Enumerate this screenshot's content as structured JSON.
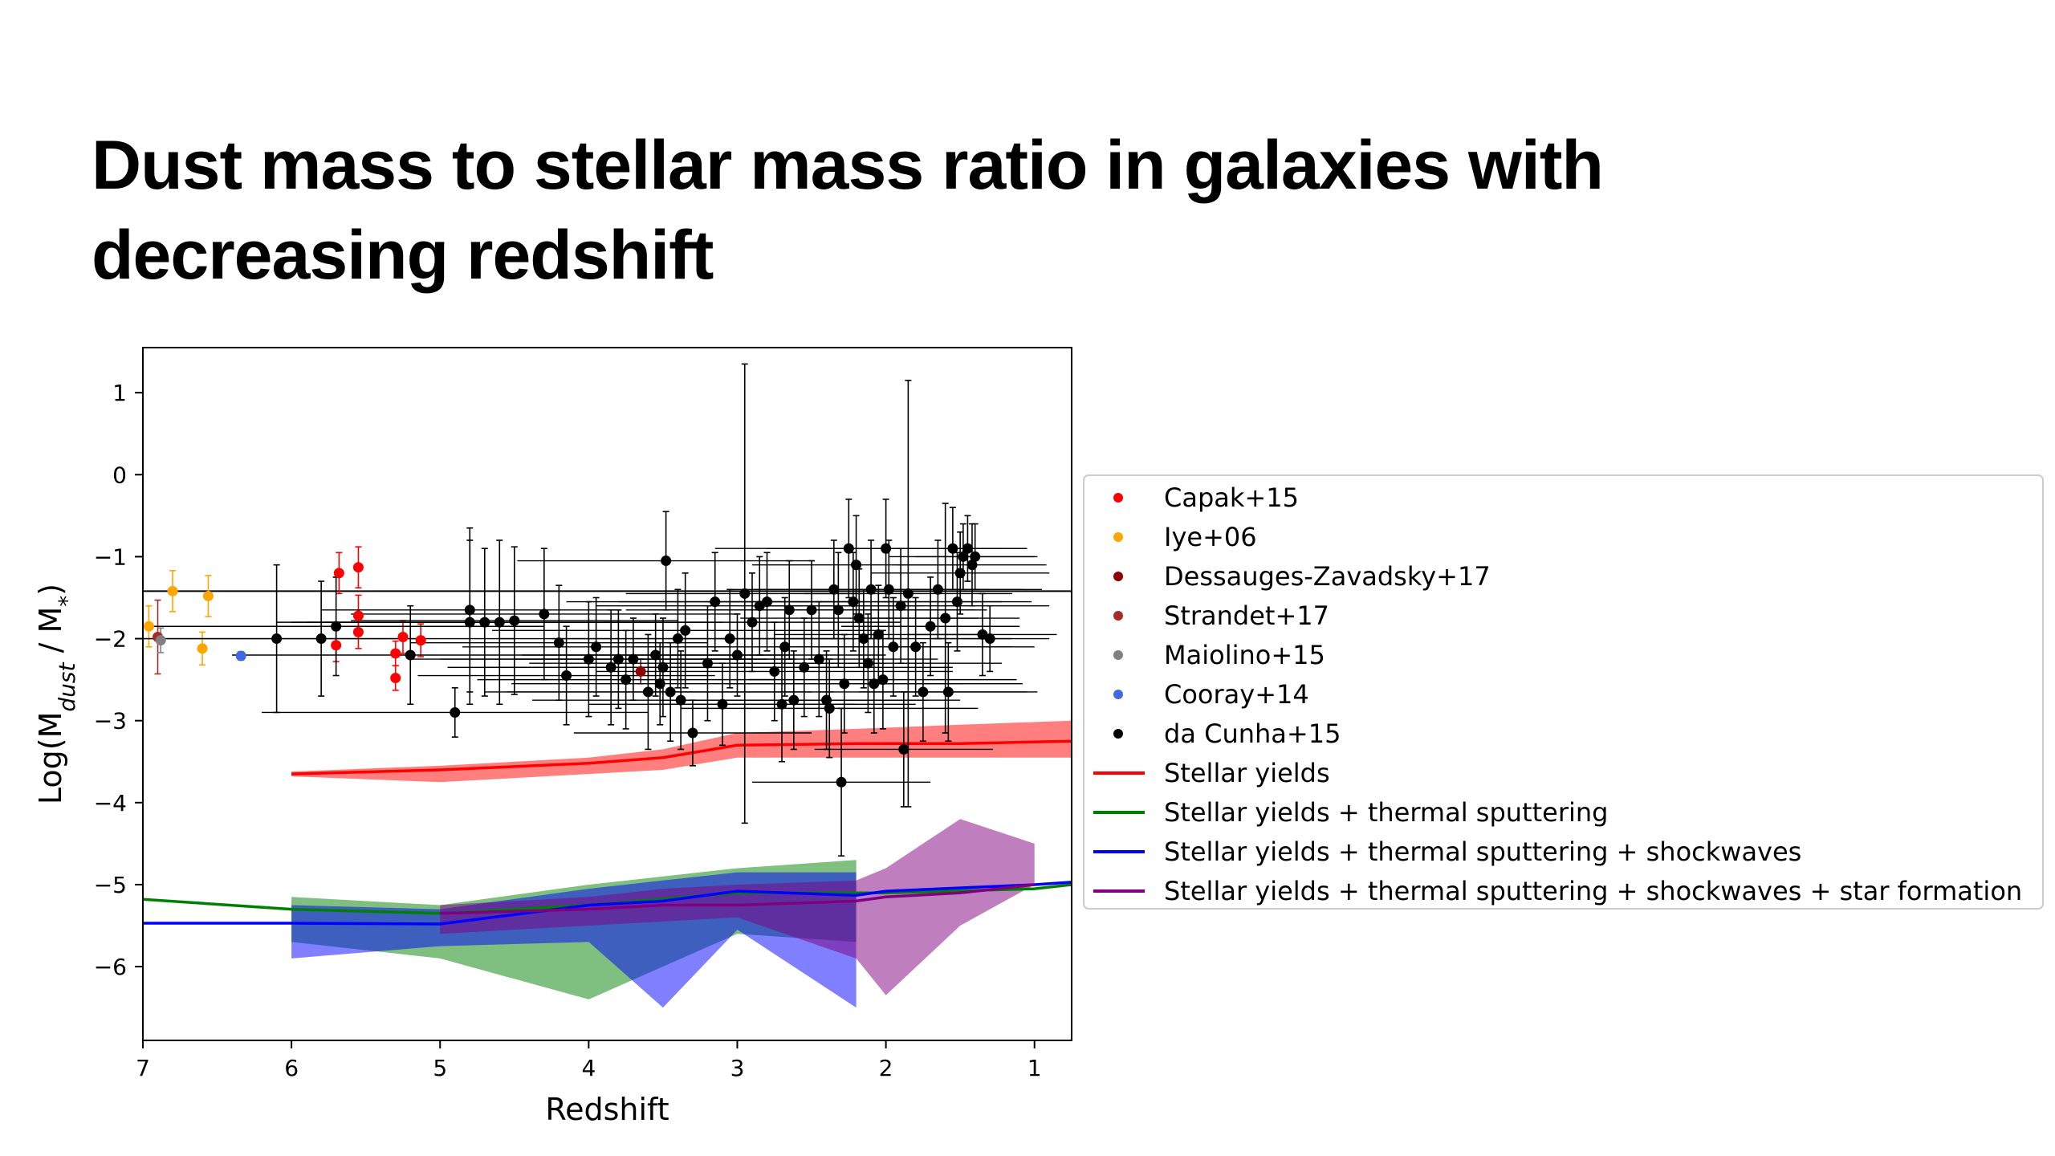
{
  "slide": {
    "title": "Dust mass to stellar mass ratio in galaxies with\ndecreasing redshift"
  },
  "chart_data": {
    "type": "scatter",
    "title": "",
    "xlabel": "Redshift",
    "ylabel": "Log(M_dust / M*)",
    "xlim": [
      7,
      0.75
    ],
    "ylim": [
      -6.9,
      1.55
    ],
    "x_inverted": true,
    "xticks": [
      7,
      6,
      5,
      4,
      3,
      2,
      1
    ],
    "yticks": [
      1,
      0,
      -1,
      -2,
      -3,
      -4,
      -5,
      -6
    ],
    "legend_position": "center-right outside",
    "horizontal_line_y": -1.42,
    "scatter_series": [
      {
        "name": "Capak+15",
        "color": "#ff0000",
        "points": [
          {
            "x": 5.7,
            "y": -2.08,
            "err": 0.2,
            "xerr": 0
          },
          {
            "x": 5.68,
            "y": -1.2,
            "err": 0.25,
            "xerr": 0
          },
          {
            "x": 5.55,
            "y": -1.13,
            "err": 0.25,
            "xerr": 0
          },
          {
            "x": 5.55,
            "y": -1.72,
            "err": 0.25,
            "xerr": 0
          },
          {
            "x": 5.55,
            "y": -1.92,
            "err": 0.2,
            "xerr": 0
          },
          {
            "x": 5.3,
            "y": -2.18,
            "err": 0.15,
            "xerr": 0
          },
          {
            "x": 5.3,
            "y": -2.48,
            "err": 0.15,
            "xerr": 0
          },
          {
            "x": 5.25,
            "y": -1.98,
            "err": 0.2,
            "xerr": 0
          },
          {
            "x": 5.13,
            "y": -2.02,
            "err": 0.2,
            "xerr": 0
          }
        ]
      },
      {
        "name": "Iye+06",
        "color": "#ffa500",
        "points": [
          {
            "x": 6.96,
            "y": -1.85,
            "err": 0.25,
            "xerr": 0
          },
          {
            "x": 6.8,
            "y": -1.42,
            "err": 0.25,
            "xerr": 0
          },
          {
            "x": 6.6,
            "y": -2.12,
            "err": 0.2,
            "xerr": 0
          },
          {
            "x": 6.56,
            "y": -1.48,
            "err": 0.25,
            "xerr": 0
          }
        ]
      },
      {
        "name": "Dessauges-Zavadsky+17",
        "color": "#8b0000",
        "points": [
          {
            "x": 3.65,
            "y": -2.4,
            "err": 0.15,
            "xerr": 0
          }
        ]
      },
      {
        "name": "Strandet+17",
        "color": "#a52a2a",
        "points": [
          {
            "x": 6.9,
            "y": -1.98,
            "err": 0.45,
            "xerr": 0
          }
        ]
      },
      {
        "name": "Maiolino+15",
        "color": "#808080",
        "points": [
          {
            "x": 6.88,
            "y": -2.02,
            "err": 0.15,
            "xerr": 0
          }
        ]
      },
      {
        "name": "Cooray+14",
        "color": "#4169e1",
        "points": [
          {
            "x": 6.34,
            "y": -2.21,
            "err": 0.05,
            "xerr": 0
          }
        ]
      },
      {
        "name": "da Cunha+15",
        "color": "#000000",
        "points": [
          {
            "x": 6.1,
            "y": -2.0,
            "err": 0.9,
            "xerr": 1.0
          },
          {
            "x": 5.8,
            "y": -2.0,
            "err": 0.7,
            "xerr": 1.3
          },
          {
            "x": 5.7,
            "y": -1.85,
            "err": 0.6,
            "xerr": 1.4
          },
          {
            "x": 5.2,
            "y": -2.2,
            "err": 0.6,
            "xerr": 1.2
          },
          {
            "x": 4.9,
            "y": -2.9,
            "err": 0.3,
            "xerr": 1.3
          },
          {
            "x": 4.8,
            "y": -1.8,
            "err": 1.0,
            "xerr": 1.2
          },
          {
            "x": 4.8,
            "y": -1.65,
            "err": 1.0,
            "xerr": 1.0
          },
          {
            "x": 4.7,
            "y": -1.8,
            "err": 0.9,
            "xerr": 1.2
          },
          {
            "x": 4.6,
            "y": -1.8,
            "err": 1.0,
            "xerr": 1.5
          },
          {
            "x": 4.5,
            "y": -1.78,
            "err": 0.9,
            "xerr": 1.1
          },
          {
            "x": 4.3,
            "y": -1.7,
            "err": 0.8,
            "xerr": 1.3
          },
          {
            "x": 4.2,
            "y": -2.05,
            "err": 0.7,
            "xerr": 1.0
          },
          {
            "x": 4.15,
            "y": -2.45,
            "err": 0.6,
            "xerr": 1.0
          },
          {
            "x": 4.0,
            "y": -2.25,
            "err": 0.7,
            "xerr": 1.2
          },
          {
            "x": 3.95,
            "y": -2.1,
            "err": 0.6,
            "xerr": 0.9
          },
          {
            "x": 3.85,
            "y": -2.35,
            "err": 0.7,
            "xerr": 1.1
          },
          {
            "x": 3.8,
            "y": -2.25,
            "err": 0.6,
            "xerr": 1.2
          },
          {
            "x": 3.75,
            "y": -2.5,
            "err": 0.6,
            "xerr": 1.0
          },
          {
            "x": 3.7,
            "y": -2.25,
            "err": 0.5,
            "xerr": 0.8
          },
          {
            "x": 3.6,
            "y": -2.65,
            "err": 0.7,
            "xerr": 1.1
          },
          {
            "x": 3.55,
            "y": -2.2,
            "err": 0.5,
            "xerr": 0.9
          },
          {
            "x": 3.52,
            "y": -2.55,
            "err": 0.5,
            "xerr": 1.0
          },
          {
            "x": 3.5,
            "y": -2.35,
            "err": 0.6,
            "xerr": 1.2
          },
          {
            "x": 3.48,
            "y": -1.05,
            "err": 0.6,
            "xerr": 1.0
          },
          {
            "x": 3.45,
            "y": -2.65,
            "err": 0.6,
            "xerr": 1.1
          },
          {
            "x": 3.4,
            "y": -2.0,
            "err": 0.6,
            "xerr": 1.2
          },
          {
            "x": 3.38,
            "y": -2.75,
            "err": 0.6,
            "xerr": 1.0
          },
          {
            "x": 3.35,
            "y": -1.9,
            "err": 0.7,
            "xerr": 1.3
          },
          {
            "x": 3.3,
            "y": -3.15,
            "err": 0.4,
            "xerr": 0.8
          },
          {
            "x": 3.2,
            "y": -2.3,
            "err": 0.7,
            "xerr": 1.2
          },
          {
            "x": 3.15,
            "y": -1.55,
            "err": 0.6,
            "xerr": 1.0
          },
          {
            "x": 3.1,
            "y": -2.8,
            "err": 0.5,
            "xerr": 0.9
          },
          {
            "x": 3.05,
            "y": -2.0,
            "err": 0.6,
            "xerr": 1.2
          },
          {
            "x": 3.0,
            "y": -2.2,
            "err": 0.5,
            "xerr": 1.0
          },
          {
            "x": 2.95,
            "y": -1.45,
            "err": 2.8,
            "xerr": 0.8
          },
          {
            "x": 2.9,
            "y": -1.8,
            "err": 0.6,
            "xerr": 1.0
          },
          {
            "x": 2.85,
            "y": -1.6,
            "err": 0.6,
            "xerr": 1.1
          },
          {
            "x": 2.8,
            "y": -1.55,
            "err": 0.6,
            "xerr": 1.0
          },
          {
            "x": 2.75,
            "y": -2.4,
            "err": 0.6,
            "xerr": 1.2
          },
          {
            "x": 2.7,
            "y": -2.8,
            "err": 0.7,
            "xerr": 0.9
          },
          {
            "x": 2.68,
            "y": -2.1,
            "err": 0.6,
            "xerr": 1.0
          },
          {
            "x": 2.65,
            "y": -1.65,
            "err": 0.6,
            "xerr": 1.1
          },
          {
            "x": 2.62,
            "y": -2.75,
            "err": 0.6,
            "xerr": 0.9
          },
          {
            "x": 2.55,
            "y": -2.35,
            "err": 0.6,
            "xerr": 1.0
          },
          {
            "x": 2.5,
            "y": -1.65,
            "err": 0.6,
            "xerr": 1.1
          },
          {
            "x": 2.45,
            "y": -2.25,
            "err": 0.7,
            "xerr": 0.8
          },
          {
            "x": 2.4,
            "y": -2.75,
            "err": 0.6,
            "xerr": 0.9
          },
          {
            "x": 2.38,
            "y": -2.85,
            "err": 0.6,
            "xerr": 1.0
          },
          {
            "x": 2.35,
            "y": -1.4,
            "err": 0.6,
            "xerr": 0.7
          },
          {
            "x": 2.32,
            "y": -1.65,
            "err": 0.7,
            "xerr": 1.0
          },
          {
            "x": 2.3,
            "y": -3.75,
            "err": 0.9,
            "xerr": 0.6
          },
          {
            "x": 2.28,
            "y": -2.55,
            "err": 0.6,
            "xerr": 0.8
          },
          {
            "x": 2.25,
            "y": -0.9,
            "err": 0.6,
            "xerr": 0.9
          },
          {
            "x": 2.22,
            "y": -1.55,
            "err": 0.6,
            "xerr": 1.0
          },
          {
            "x": 2.2,
            "y": -1.1,
            "err": 0.6,
            "xerr": 0.7
          },
          {
            "x": 2.18,
            "y": -1.75,
            "err": 0.6,
            "xerr": 0.8
          },
          {
            "x": 2.15,
            "y": -2.0,
            "err": 0.6,
            "xerr": 1.0
          },
          {
            "x": 2.12,
            "y": -2.3,
            "err": 0.6,
            "xerr": 0.9
          },
          {
            "x": 2.1,
            "y": -1.4,
            "err": 0.6,
            "xerr": 0.8
          },
          {
            "x": 2.08,
            "y": -2.55,
            "err": 0.6,
            "xerr": 1.0
          },
          {
            "x": 2.05,
            "y": -1.95,
            "err": 0.6,
            "xerr": 0.7
          },
          {
            "x": 2.02,
            "y": -2.5,
            "err": 0.6,
            "xerr": 0.9
          },
          {
            "x": 2.0,
            "y": -0.9,
            "err": 0.6,
            "xerr": 0.8
          },
          {
            "x": 1.98,
            "y": -1.4,
            "err": 0.6,
            "xerr": 0.9
          },
          {
            "x": 1.95,
            "y": -2.1,
            "err": 0.6,
            "xerr": 0.8
          },
          {
            "x": 1.9,
            "y": -1.6,
            "err": 0.7,
            "xerr": 1.0
          },
          {
            "x": 1.88,
            "y": -3.35,
            "err": 0.7,
            "xerr": 0.6
          },
          {
            "x": 1.85,
            "y": -1.45,
            "err": 2.6,
            "xerr": 0.7
          },
          {
            "x": 1.8,
            "y": -2.1,
            "err": 0.6,
            "xerr": 0.8
          },
          {
            "x": 1.75,
            "y": -2.65,
            "err": 0.6,
            "xerr": 0.7
          },
          {
            "x": 1.7,
            "y": -1.85,
            "err": 0.6,
            "xerr": 0.6
          },
          {
            "x": 1.65,
            "y": -1.4,
            "err": 0.6,
            "xerr": 0.7
          },
          {
            "x": 1.6,
            "y": -1.75,
            "err": 1.4,
            "xerr": 0.5
          },
          {
            "x": 1.58,
            "y": -2.65,
            "err": 0.6,
            "xerr": 0.6
          },
          {
            "x": 1.55,
            "y": -0.9,
            "err": 0.5,
            "xerr": 0.5
          },
          {
            "x": 1.52,
            "y": -1.55,
            "err": 0.6,
            "xerr": 0.5
          },
          {
            "x": 1.5,
            "y": -1.2,
            "err": 0.5,
            "xerr": 0.6
          },
          {
            "x": 1.48,
            "y": -1.0,
            "err": 0.4,
            "xerr": 0.5
          },
          {
            "x": 1.45,
            "y": -0.9,
            "err": 0.4,
            "xerr": 0.4
          },
          {
            "x": 1.42,
            "y": -1.1,
            "err": 0.5,
            "xerr": 0.5
          },
          {
            "x": 1.4,
            "y": -1.0,
            "err": 0.4,
            "xerr": 0.4
          },
          {
            "x": 1.35,
            "y": -1.95,
            "err": 0.5,
            "xerr": 0.5
          },
          {
            "x": 1.3,
            "y": -2.0,
            "err": 0.4,
            "xerr": 0.4
          }
        ]
      }
    ],
    "line_series": [
      {
        "name": "Stellar yields",
        "color": "#ff0000",
        "x": [
          6.0,
          5.0,
          4.0,
          3.5,
          3.0,
          2.2,
          1.5,
          0.75
        ],
        "y": [
          -3.65,
          -3.6,
          -3.52,
          -3.45,
          -3.3,
          -3.28,
          -3.28,
          -3.25
        ],
        "band_upper": [
          -3.62,
          -3.55,
          -3.45,
          -3.35,
          -3.15,
          -3.1,
          -3.05,
          -3.0
        ],
        "band_lower": [
          -3.68,
          -3.75,
          -3.65,
          -3.6,
          -3.45,
          -3.45,
          -3.45,
          -3.45
        ]
      },
      {
        "name": "Stellar yields + thermal sputtering",
        "color": "#008000",
        "x": [
          7.0,
          6.0,
          5.0,
          4.0,
          3.0,
          2.2,
          2.0,
          1.0,
          0.75
        ],
        "y": [
          -5.18,
          -5.3,
          -5.35,
          -5.25,
          -5.1,
          -5.1,
          -5.1,
          -5.05,
          -5.0
        ],
        "band_upper": [
          null,
          -5.15,
          -5.25,
          -5.0,
          -4.8,
          -4.7,
          null,
          null,
          null
        ],
        "band_lower": [
          null,
          -5.7,
          -5.9,
          -6.4,
          -5.6,
          -5.7,
          null,
          null,
          null
        ]
      },
      {
        "name": "Stellar yields + thermal sputtering + shockwaves",
        "color": "#0000ff",
        "x": [
          7.0,
          6.0,
          5.0,
          4.0,
          3.5,
          3.0,
          2.2,
          2.0,
          1.0,
          0.75
        ],
        "y": [
          -5.47,
          -5.47,
          -5.48,
          -5.25,
          -5.2,
          -5.08,
          -5.13,
          -5.08,
          -5.0,
          -4.97
        ],
        "band_upper": [
          null,
          -5.25,
          -5.3,
          -5.05,
          -4.95,
          -4.85,
          -4.85,
          null,
          null,
          null
        ],
        "band_lower": [
          null,
          -5.9,
          -5.75,
          -5.7,
          -6.5,
          -5.55,
          -6.5,
          null,
          null,
          null
        ]
      },
      {
        "name": "Stellar yields + thermal sputtering + shockwaves + star formation",
        "color": "#800080",
        "x": [
          5.0,
          4.0,
          3.5,
          3.0,
          2.2,
          2.0,
          1.5,
          1.0
        ],
        "y": [
          -5.35,
          -5.3,
          -5.25,
          -5.25,
          -5.2,
          -5.15,
          -5.1,
          -5.0
        ],
        "band_upper": [
          -5.25,
          -5.15,
          -5.05,
          -5.0,
          -4.95,
          -4.8,
          -4.2,
          -4.5
        ],
        "band_lower": [
          -5.6,
          -5.5,
          -5.45,
          -5.4,
          -5.9,
          -6.35,
          -5.5,
          -5.0
        ]
      }
    ]
  }
}
